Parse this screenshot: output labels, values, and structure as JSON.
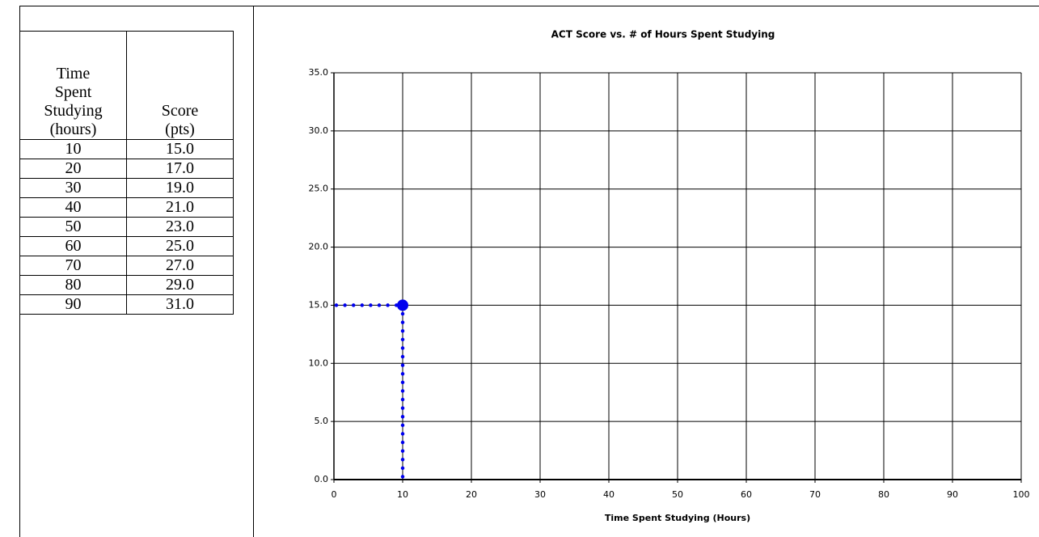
{
  "table": {
    "header": [
      "Time Spent Studying (hours)",
      "Score (pts)"
    ],
    "rows": [
      [
        "10",
        "15.0"
      ],
      [
        "20",
        "17.0"
      ],
      [
        "30",
        "19.0"
      ],
      [
        "40",
        "21.0"
      ],
      [
        "50",
        "23.0"
      ],
      [
        "60",
        "25.0"
      ],
      [
        "70",
        "27.0"
      ],
      [
        "80",
        "29.0"
      ],
      [
        "90",
        "31.0"
      ]
    ]
  },
  "chart_data": {
    "type": "scatter",
    "title": "ACT Score vs. # of Hours Spent Studying",
    "x_label": "Time Spent Studying (Hours)",
    "series": [
      {
        "color": "#0000ee",
        "x": [
          10
        ],
        "values": [
          15
        ]
      }
    ],
    "guide_lines": true,
    "xlim": [
      0,
      100
    ],
    "xticks": [
      0,
      10,
      20,
      30,
      40,
      50,
      60,
      70,
      80,
      90,
      100
    ],
    "ylim": [
      0,
      35
    ],
    "yticks": [
      {
        "value": 0,
        "label": "0.0"
      },
      {
        "value": 5,
        "label": "5.0"
      },
      {
        "value": 10,
        "label": "10.0"
      },
      {
        "value": 15,
        "label": "15.0"
      },
      {
        "value": 20,
        "label": "20.0"
      },
      {
        "value": 25,
        "label": "25.0"
      },
      {
        "value": 30,
        "label": "30.0"
      },
      {
        "value": 35,
        "label": "35.0"
      }
    ],
    "grid": true
  }
}
